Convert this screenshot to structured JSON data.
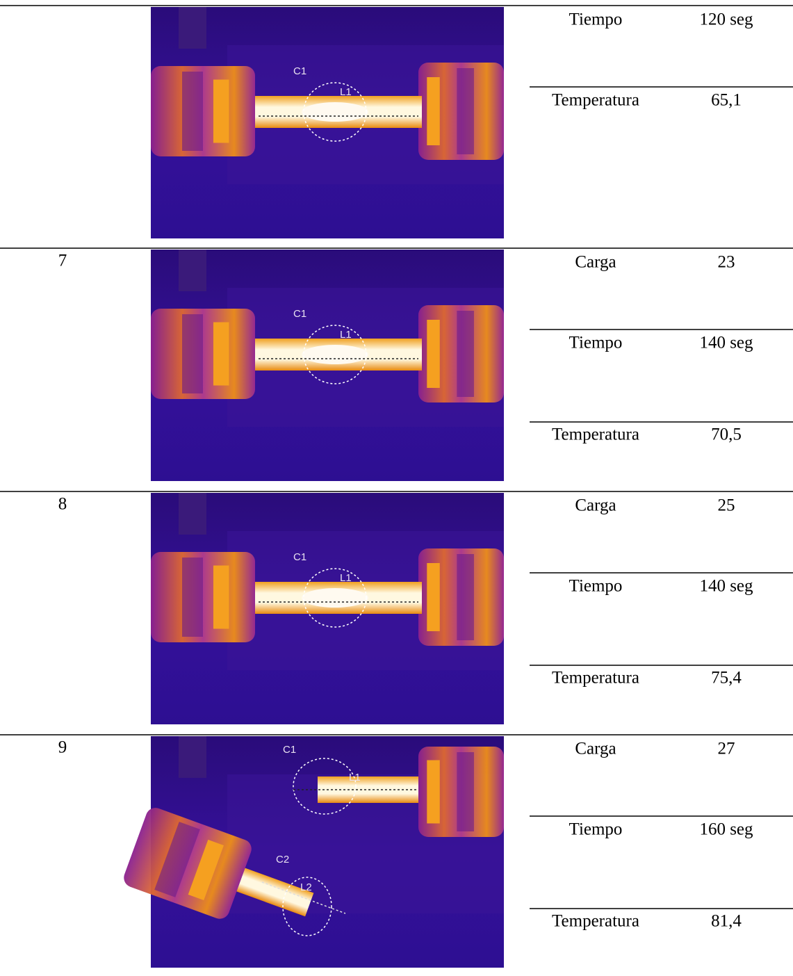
{
  "table": {
    "rows": [
      {
        "image_labels": [
          "C1",
          "L1"
        ],
        "cells": [
          {
            "label": "Tiempo",
            "value": "120 seg"
          },
          {
            "label": "Temperatura",
            "value": "65,1"
          }
        ]
      },
      {
        "number": "7",
        "image_labels": [
          "C1",
          "L1"
        ],
        "cells": [
          {
            "label": "Carga",
            "value": "23"
          },
          {
            "label": "Tiempo",
            "value": "140 seg"
          },
          {
            "label": "Temperatura",
            "value": "70,5"
          }
        ]
      },
      {
        "number": "8",
        "image_labels": [
          "C1",
          "L1"
        ],
        "cells": [
          {
            "label": "Carga",
            "value": "25"
          },
          {
            "label": "Tiempo",
            "value": "140 seg"
          },
          {
            "label": "Temperatura",
            "value": "75,4"
          }
        ]
      },
      {
        "number": "9",
        "image_labels": [
          "C1",
          "L1",
          "C2",
          "L2"
        ],
        "cells": [
          {
            "label": "Carga",
            "value": "27"
          },
          {
            "label": "Tiempo",
            "value": "160 seg"
          },
          {
            "label": "Temperatura",
            "value": "81,4"
          }
        ]
      }
    ]
  }
}
